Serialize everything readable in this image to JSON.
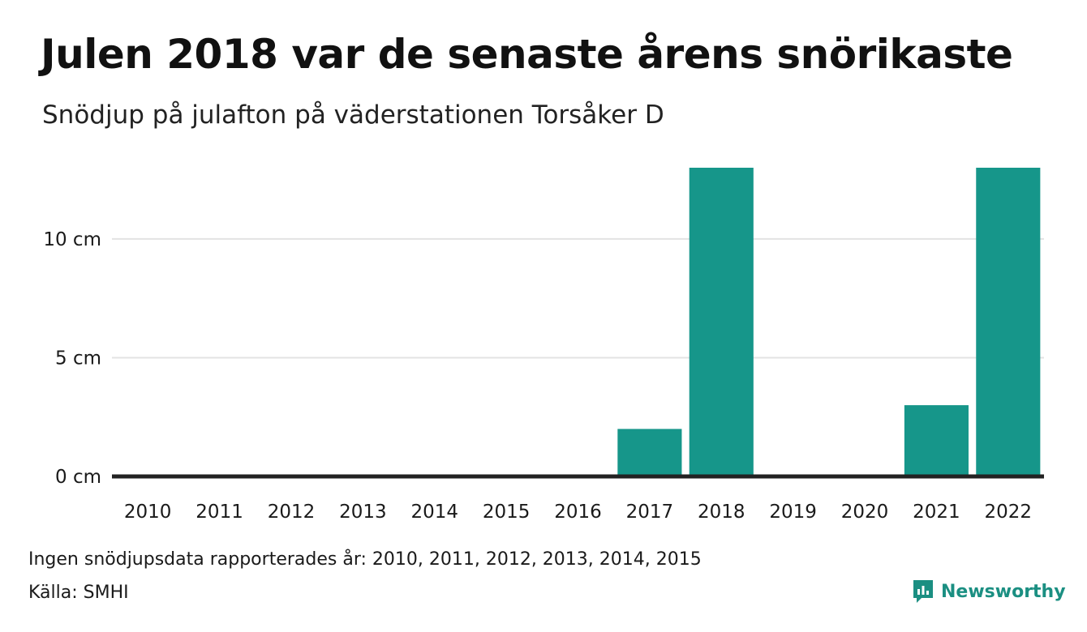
{
  "chart_data": {
    "type": "bar",
    "title": "Julen 2018 var de senaste årens snörikaste",
    "subtitle": "Snödjup på julafton på väderstationen Torsåker D",
    "categories": [
      "2010",
      "2011",
      "2012",
      "2013",
      "2014",
      "2015",
      "2016",
      "2017",
      "2018",
      "2019",
      "2020",
      "2021",
      "2022"
    ],
    "values": [
      0,
      0,
      0,
      0,
      0,
      0,
      0,
      2,
      13,
      0,
      0,
      3,
      13
    ],
    "ylim": [
      0,
      13
    ],
    "yticks": [
      0,
      5,
      10
    ],
    "ytick_labels": [
      "0 cm",
      "5 cm",
      "10 cm"
    ],
    "grid": true,
    "bar_color": "#16968a"
  },
  "footer": {
    "note": "Ingen snödjupsdata rapporterades år: 2010, 2011, 2012, 2013, 2014, 2015",
    "source": "Källa: SMHI"
  },
  "brand": {
    "name": "Newsworthy",
    "icon": "newsworthy-logo-icon",
    "color": "#1b8f82"
  }
}
